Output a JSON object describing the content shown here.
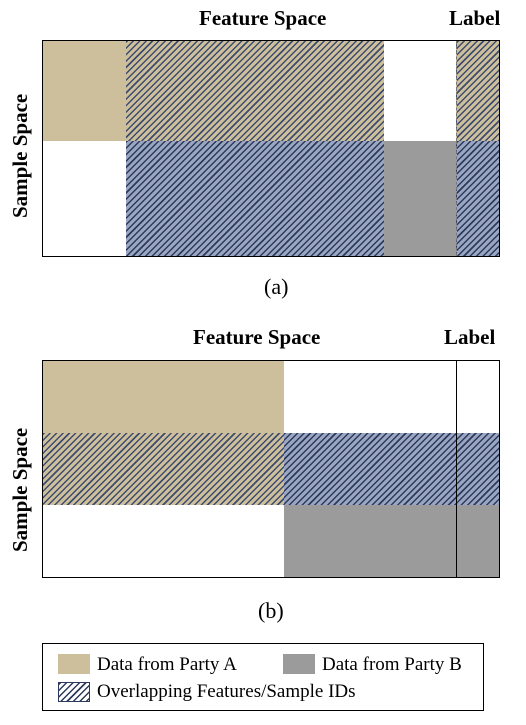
{
  "diagram_a": {
    "feature_label": "Feature Space",
    "label_label": "Label",
    "sample_label": "Sample Space",
    "caption": "(a)"
  },
  "diagram_b": {
    "feature_label": "Feature Space",
    "label_label": "Label",
    "sample_label": "Sample Space",
    "caption": "(b)"
  },
  "legend": {
    "party_a": "Data from Party A",
    "party_b": "Data from Party B",
    "overlap": "Overlapping Features/Sample IDs"
  },
  "colors": {
    "party_a": "#cdbf9b",
    "party_b": "#9b9b9b",
    "overlap_hatch": "#2c3a5e"
  }
}
